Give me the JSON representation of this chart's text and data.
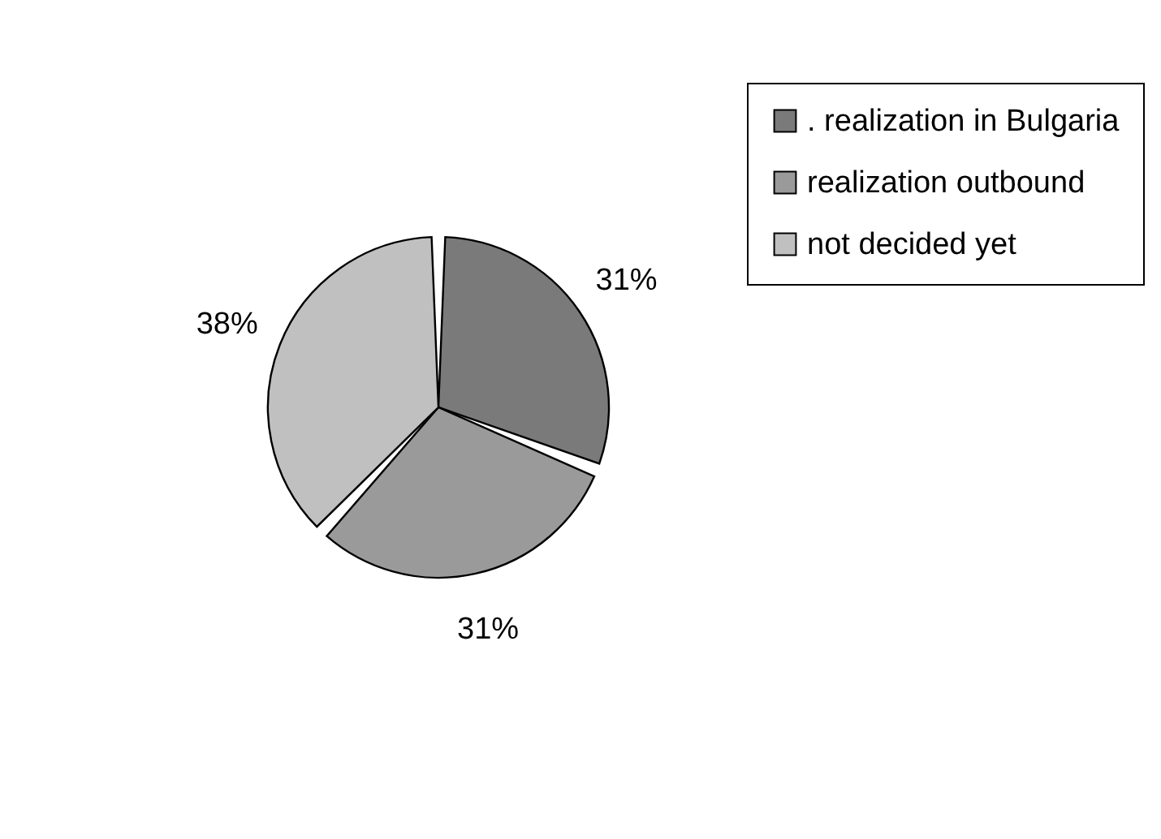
{
  "chart_data": {
    "type": "pie",
    "categories": [
      ". realization in Bulgaria",
      "realization outbound",
      "not decided yet"
    ],
    "values": [
      31,
      31,
      38
    ],
    "value_labels": [
      "31%",
      "31%",
      "38%"
    ],
    "colors": [
      "#7a7a7a",
      "#9a9a9a",
      "#c0c0c0"
    ],
    "legend": "right"
  }
}
